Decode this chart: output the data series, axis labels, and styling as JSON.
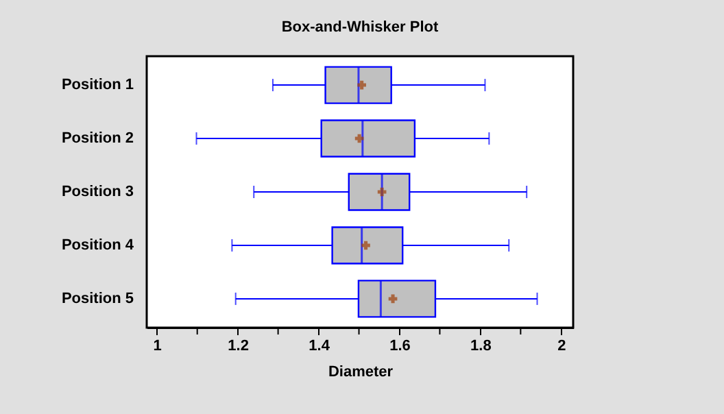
{
  "chart_data": {
    "type": "box",
    "title": "Box-and-Whisker Plot",
    "xlabel": "Diameter",
    "orientation": "horizontal",
    "categories": [
      "Position 1",
      "Position 2",
      "Position 3",
      "Position 4",
      "Position 5"
    ],
    "boxes": [
      {
        "low": 1.287,
        "q1": 1.417,
        "median": 1.499,
        "q3": 1.58,
        "high": 1.812,
        "mean": 1.507
      },
      {
        "low": 1.098,
        "q1": 1.407,
        "median": 1.509,
        "q3": 1.638,
        "high": 1.822,
        "mean": 1.501
      },
      {
        "low": 1.24,
        "q1": 1.475,
        "median": 1.557,
        "q3": 1.625,
        "high": 1.915,
        "mean": 1.557
      },
      {
        "low": 1.186,
        "q1": 1.434,
        "median": 1.507,
        "q3": 1.608,
        "high": 1.871,
        "mean": 1.517
      },
      {
        "low": 1.195,
        "q1": 1.499,
        "median": 1.554,
        "q3": 1.689,
        "high": 1.941,
        "mean": 1.584
      }
    ],
    "color": "#c0c0c0",
    "xlim": [
      0.975,
      2.03
    ],
    "xticks": [
      1,
      {
        "value": 1.1,
        "label": null
      },
      1.2,
      {
        "value": 1.3,
        "label": null
      },
      1.4,
      {
        "value": 1.5,
        "label": null
      },
      1.6,
      {
        "value": 1.7,
        "label": null
      },
      1.8,
      {
        "value": 1.9,
        "label": null
      },
      2
    ],
    "grid": false,
    "legend": false
  }
}
